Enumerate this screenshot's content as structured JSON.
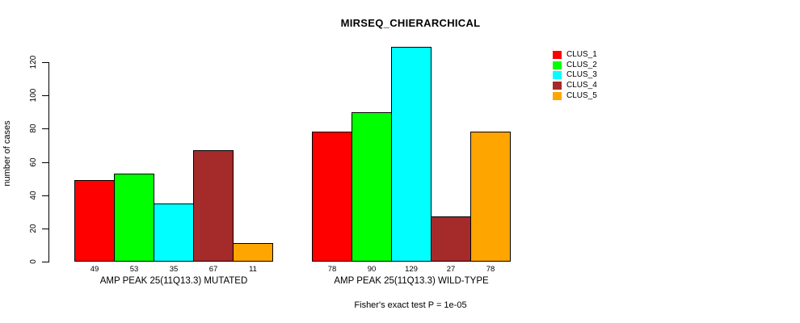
{
  "title": "MIRSEQ_CHIERARCHICAL",
  "footer": "Fisher's exact test P = 1e-05",
  "chart_data": {
    "type": "bar",
    "title": "MIRSEQ_CHIERARCHICAL",
    "xlabel": "",
    "ylabel": "number of cases",
    "yticks": [
      0,
      20,
      40,
      60,
      80,
      100,
      120
    ],
    "ylim": [
      0,
      129
    ],
    "grid": false,
    "legend_position": "right",
    "series": [
      {
        "name": "CLUS_1",
        "color": "#FF0000"
      },
      {
        "name": "CLUS_2",
        "color": "#00FF00"
      },
      {
        "name": "CLUS_3",
        "color": "#00FFFF"
      },
      {
        "name": "CLUS_4",
        "color": "#A52A2A"
      },
      {
        "name": "CLUS_5",
        "color": "#FFA500"
      }
    ],
    "groups": [
      {
        "label": "AMP PEAK 25(11Q13.3) MUTATED",
        "values": [
          49,
          53,
          35,
          67,
          11
        ]
      },
      {
        "label": "AMP PEAK 25(11Q13.3) WILD-TYPE",
        "values": [
          78,
          90,
          129,
          27,
          78
        ]
      }
    ],
    "bar_value_labels_shown": true,
    "annotation": "Fisher's exact test P = 1e-05"
  }
}
